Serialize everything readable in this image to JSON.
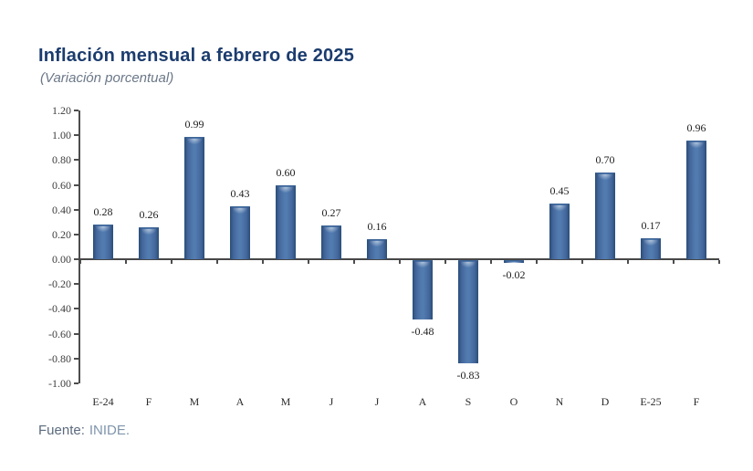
{
  "header": {
    "title": "Inflación mensual a febrero de 2025",
    "subtitle": "(Variación porcentual)"
  },
  "footer": {
    "source_label": "Fuente:",
    "source_value": "INIDE."
  },
  "chart_data": {
    "type": "bar",
    "title": "Inflación mensual a febrero de 2025",
    "subtitle": "(Variación porcentual)",
    "categories": [
      "E-24",
      "F",
      "M",
      "A",
      "M",
      "J",
      "J",
      "A",
      "S",
      "O",
      "N",
      "D",
      "E-25",
      "F"
    ],
    "values": [
      0.28,
      0.26,
      0.99,
      0.43,
      0.6,
      0.27,
      0.16,
      -0.48,
      -0.83,
      -0.02,
      0.45,
      0.7,
      0.17,
      0.96
    ],
    "value_labels": [
      "0.28",
      "0.26",
      "0.99",
      "0.43",
      "0.60",
      "0.27",
      "0.16",
      "-0.48",
      "-0.83",
      "-0.02",
      "0.45",
      "0.70",
      "0.17",
      "0.96"
    ],
    "xlabel": "",
    "ylabel": "",
    "ylim": [
      -1.0,
      1.2
    ],
    "ytick_step": 0.2,
    "yticks": [
      "1.20",
      "1.00",
      "0.80",
      "0.60",
      "0.40",
      "0.20",
      "0.00",
      "-0.20",
      "-0.40",
      "-0.60",
      "-0.80",
      "-1.00"
    ],
    "grid": false,
    "legend": null,
    "bar_color": "#4a77a9",
    "bar_edge_color": "#2a4d77",
    "source": "Fuente: INIDE."
  }
}
